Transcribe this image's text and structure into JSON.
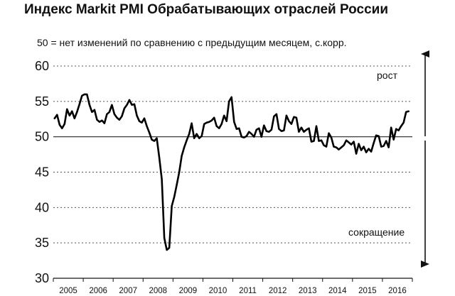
{
  "title": "Индекс Markit PMI Обрабатывающих отраслей России",
  "subtitle": "50 = нет изменений по сравнению с предыдущим месяцем, с.корр.",
  "colors": {
    "line": "#000000",
    "grid": "#555555",
    "text": "#111111"
  },
  "chart_data": {
    "type": "line",
    "title": "Индекс Markit PMI Обрабатывающих отраслей России",
    "subtitle": "50 = нет изменений по сравнению с предыдущим месяцем, с.корр.",
    "ylim": [
      30,
      60
    ],
    "yticks": [
      30,
      35,
      40,
      45,
      50,
      55,
      60
    ],
    "year_labels": [
      "2005",
      "2006",
      "2007",
      "2008",
      "2009",
      "2010",
      "2011",
      "2012",
      "2013",
      "2014",
      "2015",
      "2016"
    ],
    "x_start": "2005-01",
    "x_end": "2016-12",
    "reference_line": 50,
    "grid": "dotted horizontal",
    "annotation_up": "рост",
    "annotation_down": "сокращение",
    "series": [
      {
        "x": [
          "2005-01",
          "2005-02",
          "2005-03",
          "2005-04",
          "2005-05",
          "2005-06",
          "2005-07",
          "2005-08",
          "2005-09",
          "2005-10",
          "2005-11",
          "2005-12",
          "2006-01",
          "2006-02",
          "2006-03",
          "2006-04",
          "2006-05",
          "2006-06",
          "2006-07",
          "2006-08",
          "2006-09",
          "2006-10",
          "2006-11",
          "2006-12",
          "2007-01",
          "2007-02",
          "2007-03",
          "2007-04",
          "2007-05",
          "2007-06",
          "2007-07",
          "2007-08",
          "2007-09",
          "2007-10",
          "2007-11",
          "2007-12",
          "2008-01",
          "2008-02",
          "2008-03",
          "2008-04",
          "2008-05",
          "2008-06",
          "2008-07",
          "2008-08",
          "2008-09",
          "2008-10",
          "2008-11",
          "2008-12",
          "2009-01",
          "2009-02",
          "2009-03",
          "2009-04",
          "2009-05",
          "2009-06",
          "2009-07",
          "2009-08",
          "2009-09",
          "2009-10",
          "2009-11",
          "2009-12",
          "2010-01",
          "2010-02",
          "2010-03",
          "2010-04",
          "2010-05",
          "2010-06",
          "2010-07",
          "2010-08",
          "2010-09",
          "2010-10",
          "2010-11",
          "2010-12",
          "2011-01",
          "2011-02",
          "2011-03",
          "2011-04",
          "2011-05",
          "2011-06",
          "2011-07",
          "2011-08",
          "2011-09",
          "2011-10",
          "2011-11",
          "2011-12",
          "2012-01",
          "2012-02",
          "2012-03",
          "2012-04",
          "2012-05",
          "2012-06",
          "2012-07",
          "2012-08",
          "2012-09",
          "2012-10",
          "2012-11",
          "2012-12",
          "2013-01",
          "2013-02",
          "2013-03",
          "2013-04",
          "2013-05",
          "2013-06",
          "2013-07",
          "2013-08",
          "2013-09",
          "2013-10",
          "2013-11",
          "2013-12",
          "2014-01",
          "2014-02",
          "2014-03",
          "2014-04",
          "2014-05",
          "2014-06",
          "2014-07",
          "2014-08",
          "2014-09",
          "2014-10",
          "2014-11",
          "2014-12",
          "2015-01",
          "2015-02",
          "2015-03",
          "2015-04",
          "2015-05",
          "2015-06",
          "2015-07",
          "2015-08",
          "2015-09",
          "2015-10",
          "2015-11",
          "2015-12",
          "2016-01",
          "2016-02",
          "2016-03",
          "2016-04",
          "2016-05",
          "2016-06",
          "2016-07",
          "2016-08",
          "2016-09",
          "2016-10",
          "2016-11"
        ],
        "values": [
          52.6,
          53.1,
          51.7,
          51.2,
          51.8,
          53.9,
          53.0,
          53.6,
          52.6,
          53.5,
          54.6,
          55.8,
          56.0,
          56.0,
          54.5,
          53.5,
          53.8,
          52.4,
          52.1,
          52.3,
          51.9,
          53.2,
          53.5,
          54.5,
          53.2,
          52.7,
          52.4,
          52.9,
          54.0,
          54.5,
          55.2,
          54.5,
          54.6,
          53.0,
          52.2,
          52.0,
          52.6,
          51.5,
          50.6,
          49.6,
          49.4,
          49.8,
          47.1,
          44.0,
          35.7,
          34.0,
          34.3,
          40.2,
          41.5,
          43.2,
          45.0,
          47.3,
          48.5,
          49.5,
          50.4,
          51.9,
          49.8,
          50.4,
          49.8,
          50.1,
          51.8,
          52.0,
          52.1,
          52.3,
          52.7,
          51.5,
          51.2,
          51.8,
          53.0,
          52.2,
          55.0,
          55.6,
          52.1,
          51.1,
          51.2,
          50.0,
          49.9,
          50.1,
          50.7,
          50.4,
          50.0,
          51.0,
          51.2,
          50.0,
          51.6,
          50.8,
          50.7,
          51.0,
          52.9,
          53.2,
          51.1,
          50.8,
          50.9,
          53.0,
          52.2,
          51.8,
          52.8,
          52.7,
          50.7,
          51.3,
          50.7,
          51.0,
          51.2,
          49.3,
          49.4,
          51.5,
          49.4,
          49.5,
          48.8,
          48.6,
          50.5,
          49.9,
          48.6,
          48.5,
          48.2,
          48.5,
          48.8,
          49.5,
          49.2,
          48.9,
          49.3,
          47.6,
          49.0,
          48.1,
          48.6,
          47.8,
          48.3,
          47.9,
          49.1,
          50.2,
          50.1,
          48.6,
          48.7,
          49.4,
          48.5,
          51.3,
          49.6,
          51.1,
          50.9,
          51.5,
          52.0,
          53.5,
          53.6
        ]
      }
    ]
  }
}
